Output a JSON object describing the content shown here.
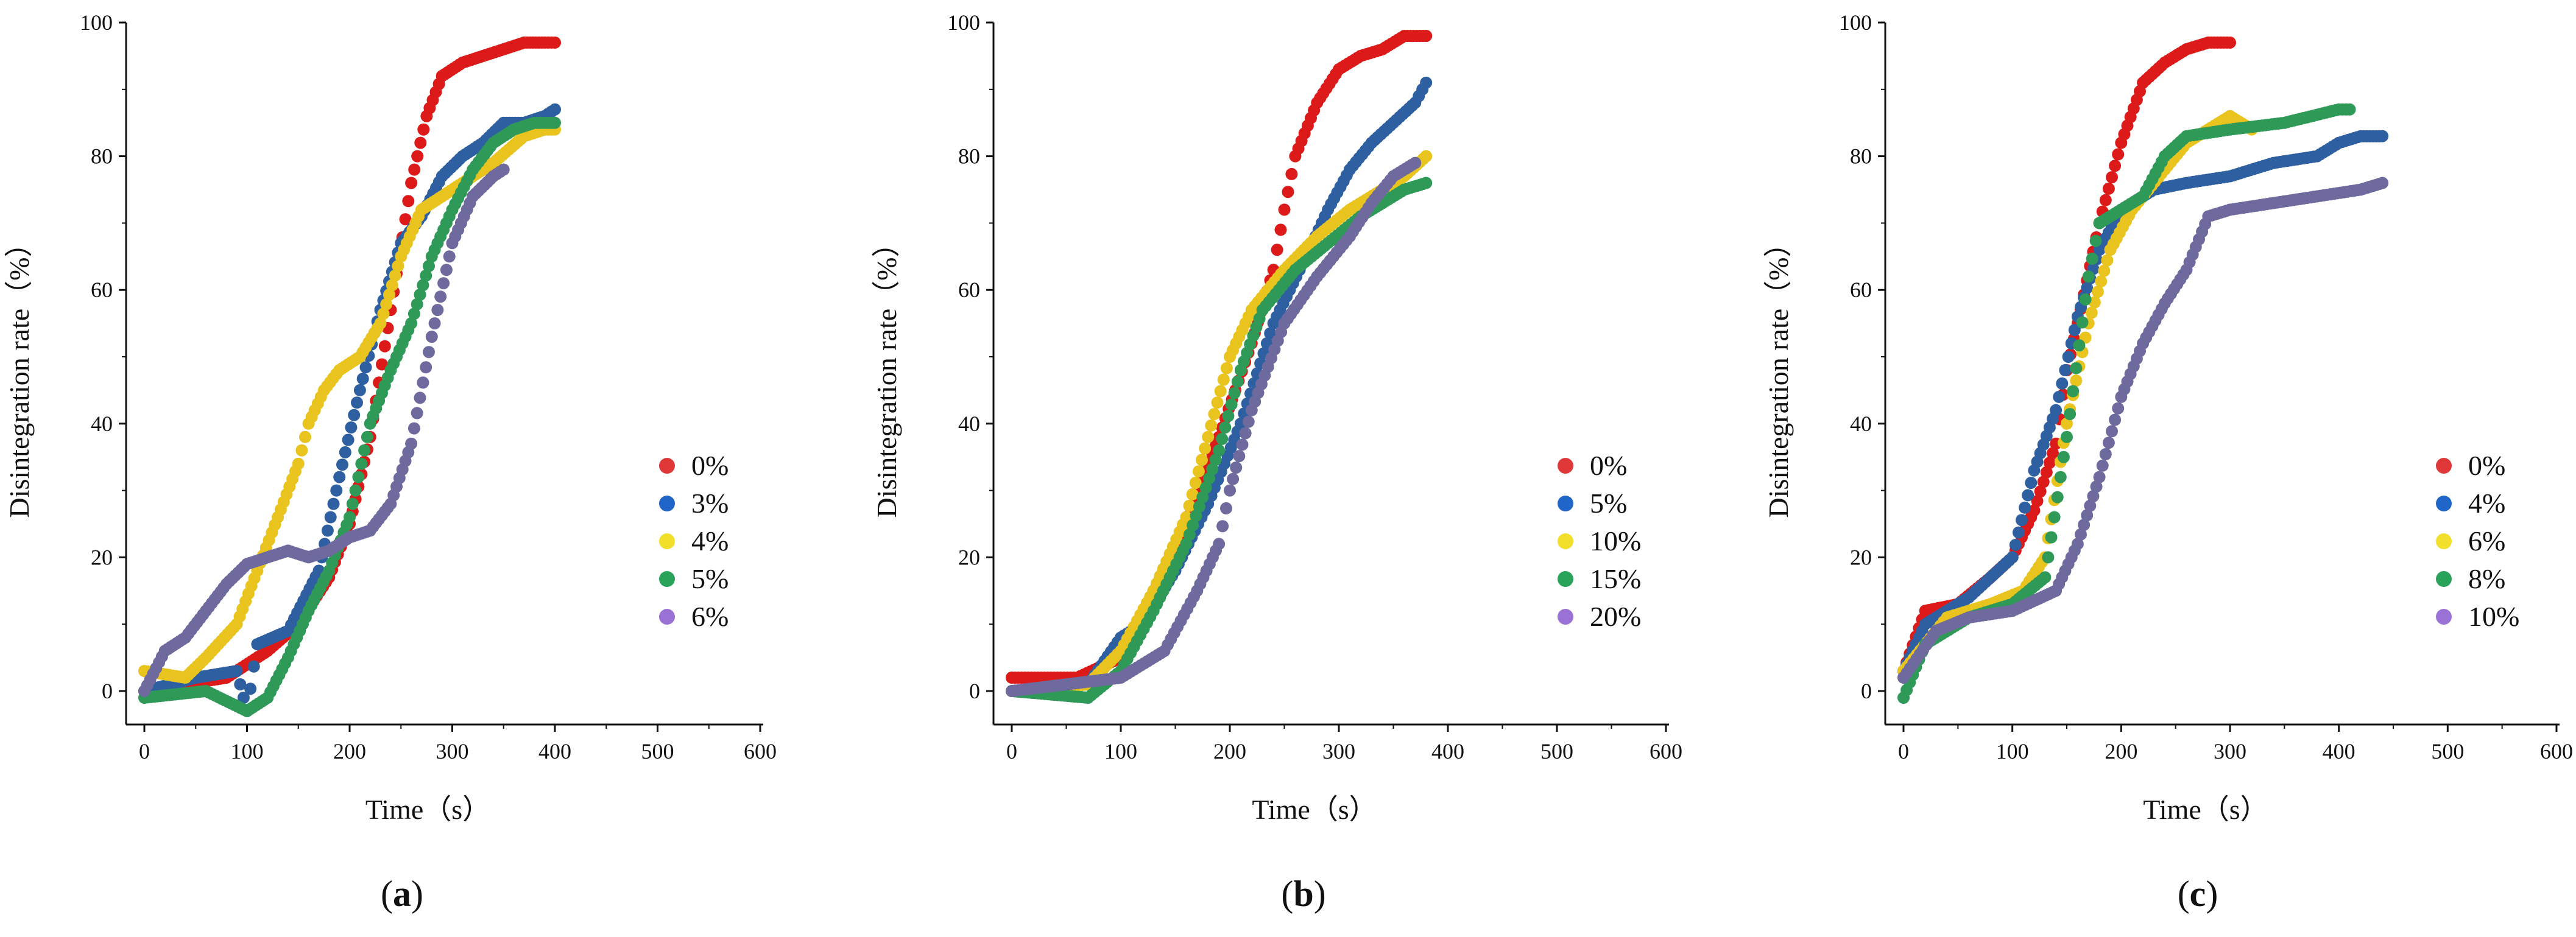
{
  "chart_data": [
    {
      "type": "scatter",
      "panel_label": "a",
      "xlabel": "Time（s）",
      "ylabel": "Disintegration rate（%）",
      "xlim": [
        0,
        600
      ],
      "ylim": [
        -5,
        100
      ],
      "xticks": [
        0,
        100,
        200,
        300,
        400,
        500,
        600
      ],
      "yticks": [
        0,
        20,
        40,
        60,
        80,
        100
      ],
      "legend_position": "right",
      "series": [
        {
          "name": "0%",
          "legend_color": "#e03838",
          "color": "#dd1a1a",
          "points": [
            [
              0,
              0
            ],
            [
              40,
              1
            ],
            [
              80,
              2
            ],
            [
              120,
              6
            ],
            [
              150,
              10
            ],
            [
              180,
              17
            ],
            [
              200,
              25
            ],
            [
              220,
              38
            ],
            [
              240,
              57
            ],
            [
              260,
              76
            ],
            [
              275,
              86
            ],
            [
              290,
              92
            ],
            [
              310,
              94
            ],
            [
              330,
              95
            ],
            [
              350,
              96
            ],
            [
              370,
              97
            ],
            [
              390,
              97
            ],
            [
              400,
              97
            ]
          ]
        },
        {
          "name": "3%",
          "legend_color": "#1f66c8",
          "color": "#2e5fa0",
          "points": [
            [
              0,
              0
            ],
            [
              50,
              2
            ],
            [
              90,
              3
            ],
            [
              100,
              -3
            ],
            [
              110,
              7
            ],
            [
              140,
              9
            ],
            [
              170,
              18
            ],
            [
              190,
              32
            ],
            [
              210,
              45
            ],
            [
              230,
              57
            ],
            [
              250,
              67
            ],
            [
              270,
              71
            ],
            [
              290,
              77
            ],
            [
              310,
              80
            ],
            [
              330,
              82
            ],
            [
              350,
              85
            ],
            [
              370,
              85
            ],
            [
              390,
              86
            ],
            [
              400,
              87
            ]
          ]
        },
        {
          "name": "4%",
          "legend_color": "#f2df2a",
          "color": "#e9c41e",
          "points": [
            [
              0,
              3
            ],
            [
              40,
              2
            ],
            [
              60,
              5
            ],
            [
              90,
              10
            ],
            [
              110,
              18
            ],
            [
              130,
              26
            ],
            [
              150,
              34
            ],
            [
              160,
              40
            ],
            [
              175,
              45
            ],
            [
              190,
              48
            ],
            [
              210,
              50
            ],
            [
              230,
              55
            ],
            [
              250,
              65
            ],
            [
              270,
              72
            ],
            [
              290,
              74
            ],
            [
              310,
              76
            ],
            [
              340,
              79
            ],
            [
              370,
              83
            ],
            [
              390,
              84
            ],
            [
              400,
              84
            ]
          ]
        },
        {
          "name": "5%",
          "legend_color": "#29a35a",
          "color": "#2f9a58",
          "points": [
            [
              0,
              -1
            ],
            [
              60,
              0
            ],
            [
              100,
              -3
            ],
            [
              120,
              -1
            ],
            [
              140,
              5
            ],
            [
              160,
              12
            ],
            [
              180,
              18
            ],
            [
              200,
              26
            ],
            [
              220,
              40
            ],
            [
              240,
              48
            ],
            [
              260,
              55
            ],
            [
              280,
              65
            ],
            [
              300,
              72
            ],
            [
              320,
              78
            ],
            [
              340,
              82
            ],
            [
              360,
              84
            ],
            [
              380,
              85
            ],
            [
              400,
              85
            ]
          ]
        },
        {
          "name": "6%",
          "legend_color": "#9a72d6",
          "color": "#6e6a9e",
          "points": [
            [
              0,
              0
            ],
            [
              20,
              6
            ],
            [
              40,
              8
            ],
            [
              60,
              12
            ],
            [
              80,
              16
            ],
            [
              100,
              19
            ],
            [
              120,
              20
            ],
            [
              140,
              21
            ],
            [
              160,
              20
            ],
            [
              180,
              21
            ],
            [
              200,
              23
            ],
            [
              220,
              24
            ],
            [
              240,
              28
            ],
            [
              260,
              37
            ],
            [
              280,
              53
            ],
            [
              300,
              67
            ],
            [
              320,
              74
            ],
            [
              340,
              77
            ],
            [
              350,
              78
            ]
          ]
        }
      ]
    },
    {
      "type": "scatter",
      "panel_label": "b",
      "xlabel": "Time（s）",
      "ylabel": "Disintegration rate（%）",
      "xlim": [
        0,
        600
      ],
      "ylim": [
        -5,
        100
      ],
      "xticks": [
        0,
        100,
        200,
        300,
        400,
        500,
        600
      ],
      "yticks": [
        0,
        20,
        40,
        60,
        80,
        100
      ],
      "legend_position": "right",
      "series": [
        {
          "name": "0%",
          "legend_color": "#e03838",
          "color": "#dd1a1a",
          "points": [
            [
              0,
              2
            ],
            [
              60,
              2
            ],
            [
              100,
              5
            ],
            [
              130,
              15
            ],
            [
              160,
              25
            ],
            [
              190,
              38
            ],
            [
              220,
              52
            ],
            [
              240,
              63
            ],
            [
              250,
              72
            ],
            [
              260,
              80
            ],
            [
              280,
              88
            ],
            [
              300,
              93
            ],
            [
              320,
              95
            ],
            [
              340,
              96
            ],
            [
              360,
              98
            ],
            [
              380,
              98
            ]
          ]
        },
        {
          "name": "5%",
          "legend_color": "#1f66c8",
          "color": "#2e5fa0",
          "points": [
            [
              0,
              0
            ],
            [
              70,
              1
            ],
            [
              100,
              8
            ],
            [
              120,
              10
            ],
            [
              150,
              18
            ],
            [
              180,
              28
            ],
            [
              210,
              40
            ],
            [
              240,
              55
            ],
            [
              270,
              65
            ],
            [
              290,
              72
            ],
            [
              310,
              78
            ],
            [
              330,
              82
            ],
            [
              350,
              85
            ],
            [
              370,
              88
            ],
            [
              380,
              91
            ]
          ]
        },
        {
          "name": "10%",
          "legend_color": "#f2df2a",
          "color": "#e9c41e",
          "points": [
            [
              0,
              0
            ],
            [
              70,
              1
            ],
            [
              100,
              6
            ],
            [
              130,
              15
            ],
            [
              160,
              26
            ],
            [
              180,
              38
            ],
            [
              200,
              50
            ],
            [
              220,
              57
            ],
            [
              250,
              63
            ],
            [
              280,
              68
            ],
            [
              310,
              72
            ],
            [
              340,
              75
            ],
            [
              360,
              77
            ],
            [
              380,
              80
            ]
          ]
        },
        {
          "name": "15%",
          "legend_color": "#29a35a",
          "color": "#2f9a58",
          "points": [
            [
              0,
              0
            ],
            [
              70,
              -1
            ],
            [
              100,
              3
            ],
            [
              130,
              12
            ],
            [
              160,
              22
            ],
            [
              190,
              36
            ],
            [
              210,
              48
            ],
            [
              230,
              57
            ],
            [
              260,
              63
            ],
            [
              290,
              67
            ],
            [
              320,
              71
            ],
            [
              340,
              73
            ],
            [
              360,
              75
            ],
            [
              380,
              76
            ]
          ]
        },
        {
          "name": "20%",
          "legend_color": "#9a72d6",
          "color": "#6e6a9e",
          "points": [
            [
              0,
              0
            ],
            [
              100,
              2
            ],
            [
              140,
              6
            ],
            [
              170,
              15
            ],
            [
              190,
              22
            ],
            [
              200,
              30
            ],
            [
              220,
              42
            ],
            [
              250,
              55
            ],
            [
              280,
              62
            ],
            [
              310,
              68
            ],
            [
              330,
              73
            ],
            [
              350,
              77
            ],
            [
              370,
              79
            ]
          ]
        }
      ]
    },
    {
      "type": "scatter",
      "panel_label": "c",
      "xlabel": "Time（s）",
      "ylabel": "Disintegration rate（%）",
      "xlim": [
        0,
        600
      ],
      "ylim": [
        -5,
        100
      ],
      "xticks": [
        0,
        100,
        200,
        300,
        400,
        500,
        600
      ],
      "yticks": [
        0,
        20,
        40,
        60,
        80,
        100
      ],
      "legend_position": "right",
      "series": [
        {
          "name": "0%",
          "legend_color": "#e03838",
          "color": "#dd1a1a",
          "points": [
            [
              0,
              3
            ],
            [
              20,
              12
            ],
            [
              50,
              13
            ],
            [
              80,
              17
            ],
            [
              100,
              20
            ],
            [
              120,
              27
            ],
            [
              140,
              37
            ],
            [
              150,
              48
            ],
            [
              160,
              55
            ],
            [
              180,
              70
            ],
            [
              200,
              82
            ],
            [
              220,
              91
            ],
            [
              240,
              94
            ],
            [
              260,
              96
            ],
            [
              280,
              97
            ],
            [
              300,
              97
            ]
          ]
        },
        {
          "name": "4%",
          "legend_color": "#1f66c8",
          "color": "#2e5fa0",
          "points": [
            [
              0,
              3
            ],
            [
              20,
              10
            ],
            [
              60,
              14
            ],
            [
              100,
              20
            ],
            [
              120,
              33
            ],
            [
              140,
              42
            ],
            [
              160,
              56
            ],
            [
              180,
              66
            ],
            [
              200,
              72
            ],
            [
              230,
              75
            ],
            [
              260,
              76
            ],
            [
              300,
              77
            ],
            [
              340,
              79
            ],
            [
              380,
              80
            ],
            [
              400,
              82
            ],
            [
              420,
              83
            ],
            [
              440,
              83
            ]
          ]
        },
        {
          "name": "6%",
          "legend_color": "#f2df2a",
          "color": "#e9c41e",
          "points": [
            [
              0,
              3
            ],
            [
              40,
              11
            ],
            [
              80,
              13
            ],
            [
              110,
              15
            ],
            [
              130,
              20
            ],
            [
              150,
              40
            ],
            [
              170,
              55
            ],
            [
              190,
              66
            ],
            [
              210,
              72
            ],
            [
              240,
              78
            ],
            [
              260,
              82
            ],
            [
              280,
              84
            ],
            [
              300,
              86
            ],
            [
              320,
              84
            ]
          ]
        },
        {
          "name": "8%",
          "legend_color": "#29a35a",
          "color": "#2f9a58",
          "points": [
            [
              0,
              -1
            ],
            [
              20,
              7
            ],
            [
              60,
              11
            ],
            [
              100,
              13
            ],
            [
              130,
              17
            ],
            [
              150,
              38
            ],
            [
              170,
              62
            ],
            [
              180,
              70
            ],
            [
              200,
              72
            ],
            [
              220,
              74
            ],
            [
              240,
              80
            ],
            [
              260,
              83
            ],
            [
              300,
              84
            ],
            [
              350,
              85
            ],
            [
              400,
              87
            ],
            [
              410,
              87
            ]
          ]
        },
        {
          "name": "10%",
          "legend_color": "#9a72d6",
          "color": "#6e6a9e",
          "points": [
            [
              0,
              2
            ],
            [
              30,
              9
            ],
            [
              60,
              11
            ],
            [
              100,
              12
            ],
            [
              140,
              15
            ],
            [
              160,
              22
            ],
            [
              180,
              32
            ],
            [
              200,
              44
            ],
            [
              220,
              52
            ],
            [
              240,
              58
            ],
            [
              260,
              63
            ],
            [
              280,
              71
            ],
            [
              300,
              72
            ],
            [
              340,
              73
            ],
            [
              380,
              74
            ],
            [
              420,
              75
            ],
            [
              440,
              76
            ]
          ]
        }
      ]
    }
  ]
}
